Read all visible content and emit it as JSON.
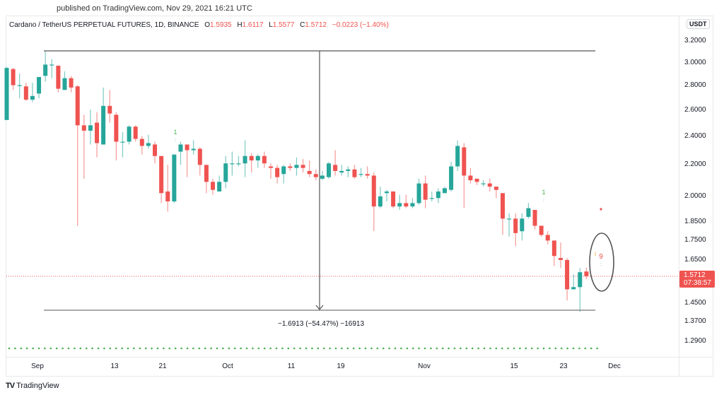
{
  "header": {
    "published": "published on TradingView.com, Nov 29, 2021 16:21 UTC"
  },
  "legend": {
    "symbol": "Cardano / TetherUS PERPETUAL FUTURES, 1D, BINANCE",
    "open_label": "O",
    "open": "1.5935",
    "high_label": "H",
    "high": "1.6117",
    "low_label": "L",
    "low": "1.5577",
    "close_label": "C",
    "close": "1.5712",
    "change": "−0.0223 (−1.40%)"
  },
  "price_axis": {
    "currency": "USDT",
    "ticks": [
      "3.2000",
      "3.0000",
      "2.8000",
      "2.6000",
      "2.4000",
      "2.2000",
      "2.0000",
      "1.8500",
      "1.7500",
      "1.6500",
      "1.4500",
      "1.3700",
      "1.2900"
    ],
    "last_price": "1.5712",
    "countdown": "07:38:57"
  },
  "time_axis": {
    "ticks": [
      "Sep",
      "13",
      "21",
      "Oct",
      "11",
      "19",
      "Nov",
      "15",
      "23",
      "Dec"
    ]
  },
  "measure": {
    "label": "−1.6913 (−54.47%) −16913"
  },
  "annotations": {
    "td_counts": [
      "1",
      "1",
      "9"
    ]
  },
  "footer": {
    "logo_mark": "TV",
    "brand": "TradingView"
  },
  "colors": {
    "up": "#26a69a",
    "down": "#ef5350",
    "measure_line": "#555555",
    "dots": "#4caf50"
  },
  "chart_data": {
    "type": "candlestick",
    "title": "Cardano / TetherUS PERPETUAL FUTURES, 1D, BINANCE",
    "xlabel": "",
    "ylabel": "USDT",
    "y_scale": "log",
    "ylim": [
      1.26,
      3.3
    ],
    "x_ticks": [
      "Sep",
      "13",
      "21",
      "Oct",
      "11",
      "19",
      "Nov",
      "15",
      "23",
      "Dec"
    ],
    "y_ticks": [
      3.2,
      3.0,
      2.8,
      2.6,
      2.4,
      2.2,
      2.0,
      1.85,
      1.75,
      1.65,
      1.45,
      1.37,
      1.29
    ],
    "last": {
      "open": 1.5935,
      "high": 1.6117,
      "low": 1.5577,
      "close": 1.5712,
      "change": -0.0223,
      "change_pct": -1.4
    },
    "measurement": {
      "from": 3.105,
      "to": 1.414,
      "delta": -1.6913,
      "pct": -54.47,
      "ticks": -16913
    },
    "candles": [
      {
        "o": 2.52,
        "h": 2.96,
        "l": 2.52,
        "c": 2.95
      },
      {
        "o": 2.94,
        "h": 2.95,
        "l": 2.76,
        "c": 2.8
      },
      {
        "o": 2.8,
        "h": 2.9,
        "l": 2.69,
        "c": 2.8
      },
      {
        "o": 2.79,
        "h": 2.82,
        "l": 2.67,
        "c": 2.68
      },
      {
        "o": 2.68,
        "h": 2.82,
        "l": 2.66,
        "c": 2.71
      },
      {
        "o": 2.73,
        "h": 2.86,
        "l": 2.69,
        "c": 2.87
      },
      {
        "o": 2.88,
        "h": 3.1,
        "l": 2.83,
        "c": 2.98
      },
      {
        "o": 2.98,
        "h": 3.03,
        "l": 2.86,
        "c": 2.98
      },
      {
        "o": 2.97,
        "h": 2.97,
        "l": 2.74,
        "c": 2.77
      },
      {
        "o": 2.76,
        "h": 2.92,
        "l": 2.76,
        "c": 2.86
      },
      {
        "o": 2.86,
        "h": 2.88,
        "l": 2.74,
        "c": 2.78
      },
      {
        "o": 2.79,
        "h": 2.8,
        "l": 1.83,
        "c": 2.48
      },
      {
        "o": 2.48,
        "h": 2.56,
        "l": 2.11,
        "c": 2.44
      },
      {
        "o": 2.44,
        "h": 2.6,
        "l": 2.34,
        "c": 2.48
      },
      {
        "o": 2.5,
        "h": 2.58,
        "l": 2.25,
        "c": 2.35
      },
      {
        "o": 2.34,
        "h": 2.78,
        "l": 2.34,
        "c": 2.63
      },
      {
        "o": 2.63,
        "h": 2.76,
        "l": 2.5,
        "c": 2.57
      },
      {
        "o": 2.56,
        "h": 2.58,
        "l": 2.23,
        "c": 2.36
      },
      {
        "o": 2.36,
        "h": 2.43,
        "l": 2.25,
        "c": 2.36
      },
      {
        "o": 2.36,
        "h": 2.48,
        "l": 2.34,
        "c": 2.47
      },
      {
        "o": 2.47,
        "h": 2.48,
        "l": 2.36,
        "c": 2.38
      },
      {
        "o": 2.38,
        "h": 2.4,
        "l": 2.27,
        "c": 2.33
      },
      {
        "o": 2.33,
        "h": 2.41,
        "l": 2.31,
        "c": 2.35
      },
      {
        "o": 2.34,
        "h": 2.36,
        "l": 2.21,
        "c": 2.26
      },
      {
        "o": 2.26,
        "h": 2.26,
        "l": 1.96,
        "c": 2.02
      },
      {
        "o": 2.03,
        "h": 2.2,
        "l": 1.91,
        "c": 1.97
      },
      {
        "o": 1.97,
        "h": 2.21,
        "l": 1.96,
        "c": 2.27
      },
      {
        "o": 2.29,
        "h": 2.36,
        "l": 2.2,
        "c": 2.34
      },
      {
        "o": 2.34,
        "h": 2.34,
        "l": 2.12,
        "c": 2.3
      },
      {
        "o": 2.3,
        "h": 2.37,
        "l": 2.27,
        "c": 2.31
      },
      {
        "o": 2.31,
        "h": 2.32,
        "l": 2.13,
        "c": 2.2
      },
      {
        "o": 2.2,
        "h": 2.2,
        "l": 2.02,
        "c": 2.09
      },
      {
        "o": 2.09,
        "h": 2.11,
        "l": 2.01,
        "c": 2.04
      },
      {
        "o": 2.03,
        "h": 2.13,
        "l": 2.03,
        "c": 2.09
      },
      {
        "o": 2.09,
        "h": 2.26,
        "l": 2.05,
        "c": 2.21
      },
      {
        "o": 2.21,
        "h": 2.29,
        "l": 2.13,
        "c": 2.21
      },
      {
        "o": 2.21,
        "h": 2.26,
        "l": 2.19,
        "c": 2.21
      },
      {
        "o": 2.21,
        "h": 2.37,
        "l": 2.12,
        "c": 2.26
      },
      {
        "o": 2.26,
        "h": 2.28,
        "l": 2.15,
        "c": 2.23
      },
      {
        "o": 2.23,
        "h": 2.27,
        "l": 2.18,
        "c": 2.26
      },
      {
        "o": 2.26,
        "h": 2.29,
        "l": 2.18,
        "c": 2.21
      },
      {
        "o": 2.19,
        "h": 2.21,
        "l": 2.11,
        "c": 2.18
      },
      {
        "o": 2.18,
        "h": 2.2,
        "l": 2.08,
        "c": 2.12
      },
      {
        "o": 2.14,
        "h": 2.2,
        "l": 2.08,
        "c": 2.19
      },
      {
        "o": 2.19,
        "h": 2.21,
        "l": 2.16,
        "c": 2.18
      },
      {
        "o": 2.18,
        "h": 2.25,
        "l": 2.13,
        "c": 2.2
      },
      {
        "o": 2.2,
        "h": 2.24,
        "l": 2.15,
        "c": 2.18
      },
      {
        "o": 2.16,
        "h": 2.23,
        "l": 2.12,
        "c": 2.14
      },
      {
        "o": 2.14,
        "h": 2.17,
        "l": 2.1,
        "c": 2.12
      },
      {
        "o": 2.11,
        "h": 2.16,
        "l": 2.1,
        "c": 2.13
      },
      {
        "o": 2.12,
        "h": 2.22,
        "l": 2.11,
        "c": 2.21
      },
      {
        "o": 2.2,
        "h": 2.3,
        "l": 2.13,
        "c": 2.16
      },
      {
        "o": 2.15,
        "h": 2.2,
        "l": 2.13,
        "c": 2.16
      },
      {
        "o": 2.16,
        "h": 2.19,
        "l": 2.12,
        "c": 2.17
      },
      {
        "o": 2.17,
        "h": 2.2,
        "l": 2.11,
        "c": 2.12
      },
      {
        "o": 2.14,
        "h": 2.18,
        "l": 2.12,
        "c": 2.14
      },
      {
        "o": 2.14,
        "h": 2.19,
        "l": 2.11,
        "c": 2.13
      },
      {
        "o": 2.13,
        "h": 2.15,
        "l": 1.8,
        "c": 1.94
      },
      {
        "o": 1.94,
        "h": 2.06,
        "l": 1.93,
        "c": 2.0
      },
      {
        "o": 2.02,
        "h": 2.04,
        "l": 1.97,
        "c": 2.03
      },
      {
        "o": 2.03,
        "h": 2.03,
        "l": 1.93,
        "c": 1.94
      },
      {
        "o": 1.94,
        "h": 2.01,
        "l": 1.92,
        "c": 1.96
      },
      {
        "o": 1.96,
        "h": 2.01,
        "l": 1.93,
        "c": 1.94
      },
      {
        "o": 1.94,
        "h": 1.99,
        "l": 1.93,
        "c": 1.96
      },
      {
        "o": 1.96,
        "h": 2.11,
        "l": 1.95,
        "c": 2.08
      },
      {
        "o": 2.08,
        "h": 2.13,
        "l": 1.93,
        "c": 1.98
      },
      {
        "o": 1.99,
        "h": 2.03,
        "l": 1.97,
        "c": 1.99
      },
      {
        "o": 1.99,
        "h": 2.05,
        "l": 1.96,
        "c": 2.03
      },
      {
        "o": 2.02,
        "h": 2.06,
        "l": 2.02,
        "c": 2.05
      },
      {
        "o": 2.04,
        "h": 2.22,
        "l": 2.03,
        "c": 2.19
      },
      {
        "o": 2.19,
        "h": 2.37,
        "l": 2.16,
        "c": 2.33
      },
      {
        "o": 2.32,
        "h": 2.35,
        "l": 1.93,
        "c": 2.13
      },
      {
        "o": 2.13,
        "h": 2.18,
        "l": 2.08,
        "c": 2.1
      },
      {
        "o": 2.11,
        "h": 2.11,
        "l": 2.07,
        "c": 2.09
      },
      {
        "o": 2.08,
        "h": 2.1,
        "l": 2.06,
        "c": 2.08
      },
      {
        "o": 2.08,
        "h": 2.11,
        "l": 2.03,
        "c": 2.06
      },
      {
        "o": 2.06,
        "h": 2.06,
        "l": 1.99,
        "c": 2.04
      },
      {
        "o": 2.02,
        "h": 2.02,
        "l": 1.78,
        "c": 1.87
      },
      {
        "o": 1.87,
        "h": 1.9,
        "l": 1.77,
        "c": 1.87
      },
      {
        "o": 1.87,
        "h": 1.9,
        "l": 1.72,
        "c": 1.79
      },
      {
        "o": 1.8,
        "h": 1.9,
        "l": 1.75,
        "c": 1.87
      },
      {
        "o": 1.88,
        "h": 1.96,
        "l": 1.87,
        "c": 1.93
      },
      {
        "o": 1.92,
        "h": 1.92,
        "l": 1.81,
        "c": 1.83
      },
      {
        "o": 1.83,
        "h": 1.83,
        "l": 1.77,
        "c": 1.78
      },
      {
        "o": 1.78,
        "h": 1.8,
        "l": 1.73,
        "c": 1.75
      },
      {
        "o": 1.75,
        "h": 1.75,
        "l": 1.62,
        "c": 1.67
      },
      {
        "o": 1.66,
        "h": 1.74,
        "l": 1.61,
        "c": 1.65
      },
      {
        "o": 1.65,
        "h": 1.66,
        "l": 1.46,
        "c": 1.51
      },
      {
        "o": 1.51,
        "h": 1.58,
        "l": 1.51,
        "c": 1.52
      },
      {
        "o": 1.52,
        "h": 1.61,
        "l": 1.41,
        "c": 1.59
      },
      {
        "o": 1.5935,
        "h": 1.6117,
        "l": 1.5577,
        "c": 1.5712
      }
    ]
  }
}
